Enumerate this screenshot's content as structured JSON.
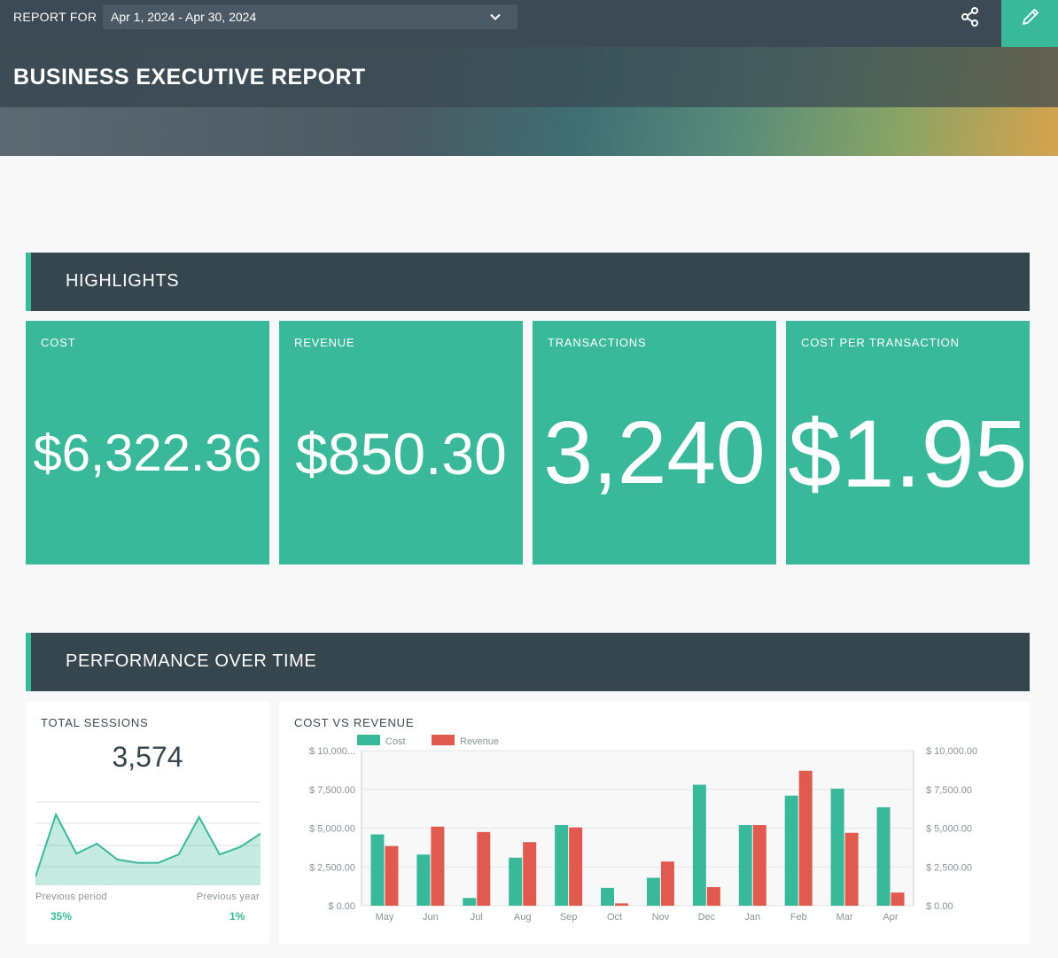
{
  "header": {
    "report_for_label": "REPORT FOR",
    "date_range": "Apr 1, 2024 - Apr 30, 2024",
    "share_icon": "share-icon",
    "edit_icon": "pencil-icon",
    "accent_color": "#3ab99a"
  },
  "banner": {
    "title": "BUSINESS EXECUTIVE REPORT"
  },
  "sections": {
    "highlights": "HIGHLIGHTS",
    "performance": "PERFORMANCE OVER TIME"
  },
  "kpis": [
    {
      "label": "COST",
      "value": "$6,322.36"
    },
    {
      "label": "REVENUE",
      "value": "$850.30"
    },
    {
      "label": "TRANSACTIONS",
      "value": "3,240"
    },
    {
      "label": "COST PER TRANSACTION",
      "value": "$1.95"
    }
  ],
  "sessions": {
    "title": "TOTAL SESSIONS",
    "value": "3,574",
    "previous_period_label": "Previous period",
    "previous_period_change": "35%",
    "previous_year_label": "Previous year",
    "previous_year_change": "1%"
  },
  "chart_data": [
    {
      "type": "area",
      "title": "TOTAL SESSIONS",
      "values": [
        10,
        85,
        38,
        50,
        31,
        27,
        27,
        37,
        82,
        37,
        46,
        62
      ],
      "ylim": [
        0,
        100
      ],
      "color": "#3ab99a"
    },
    {
      "type": "bar",
      "title": "COST VS REVENUE",
      "categories": [
        "May",
        "Jun",
        "Jul",
        "Aug",
        "Sep",
        "Oct",
        "Nov",
        "Dec",
        "Jan",
        "Feb",
        "Mar",
        "Apr"
      ],
      "series": [
        {
          "name": "Cost",
          "color": "#3ab99a",
          "values": [
            4600,
            3300,
            500,
            3100,
            5200,
            1150,
            1800,
            7800,
            5200,
            7100,
            7550,
            6350
          ]
        },
        {
          "name": "Revenue",
          "color": "#e05a50",
          "values": [
            3850,
            5100,
            4750,
            4100,
            5050,
            150,
            2850,
            1200,
            5200,
            8700,
            4700,
            850
          ]
        }
      ],
      "ylim": [
        0,
        10000
      ],
      "y_ticks_left": [
        "$ 0.00",
        "$ 2,500.00",
        "$ 5,000.00",
        "$ 7,500.00",
        "$ 10,000..."
      ],
      "y_ticks_right": [
        "$ 0.00",
        "$ 2,500.00",
        "$ 5,000.00",
        "$ 7,500.00",
        "$ 10,000.00"
      ],
      "legend_position": "top-left",
      "grid": true
    }
  ]
}
